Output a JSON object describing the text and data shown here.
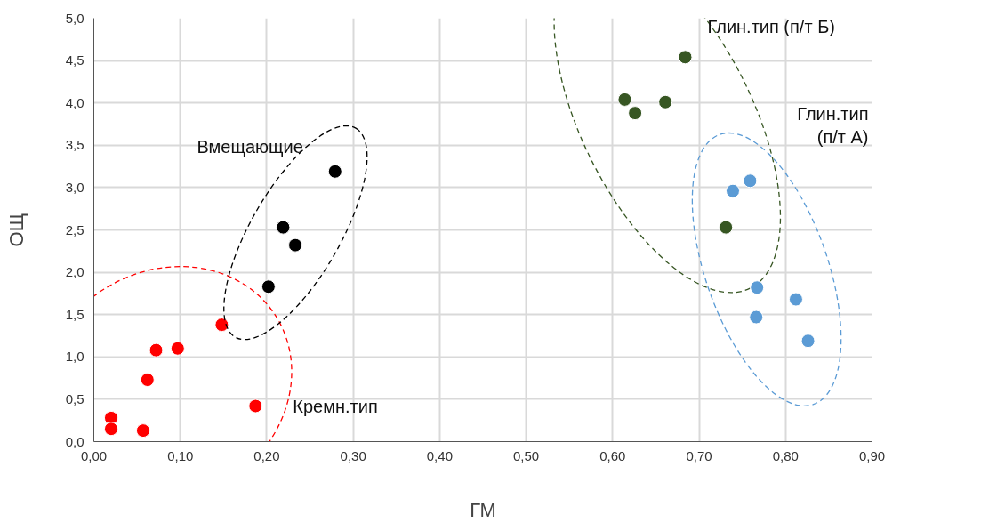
{
  "chart_data": {
    "type": "scatter",
    "xlabel": "ГМ",
    "ylabel": "ОЩ",
    "xlim": [
      0,
      0.9
    ],
    "ylim": [
      0,
      5
    ],
    "xticks": [
      {
        "value": 0,
        "label": "0,00"
      },
      {
        "value": 0.1,
        "label": "0,10"
      },
      {
        "value": 0.2,
        "label": "0,20"
      },
      {
        "value": 0.3,
        "label": "0,30"
      },
      {
        "value": 0.4,
        "label": "0,40"
      },
      {
        "value": 0.5,
        "label": "0,50"
      },
      {
        "value": 0.6,
        "label": "0,60"
      },
      {
        "value": 0.7,
        "label": "0,70"
      },
      {
        "value": 0.8,
        "label": "0,80"
      },
      {
        "value": 0.9,
        "label": "0,90"
      }
    ],
    "yticks": [
      {
        "value": 0,
        "label": "0,0"
      },
      {
        "value": 0.5,
        "label": "0,5"
      },
      {
        "value": 1,
        "label": "1,0"
      },
      {
        "value": 1.5,
        "label": "1,5"
      },
      {
        "value": 2,
        "label": "2,0"
      },
      {
        "value": 2.5,
        "label": "2,5"
      },
      {
        "value": 3,
        "label": "3,0"
      },
      {
        "value": 3.5,
        "label": "3,5"
      },
      {
        "value": 4,
        "label": "4,0"
      },
      {
        "value": 4.5,
        "label": "4,5"
      },
      {
        "value": 5,
        "label": "5,0"
      }
    ],
    "grid": true,
    "marker": "circle",
    "series": [
      {
        "name": "Кремн.тип",
        "color": "#ff0000",
        "x": [
          0.02,
          0.02,
          0.057,
          0.062,
          0.072,
          0.097,
          0.148,
          0.187
        ],
        "values": [
          0.28,
          0.15,
          0.13,
          0.73,
          1.08,
          1.1,
          1.38,
          0.42
        ]
      },
      {
        "name": "Вмещающие",
        "color": "#000000",
        "x": [
          0.202,
          0.219,
          0.233,
          0.279
        ],
        "values": [
          1.83,
          2.53,
          2.32,
          3.19
        ]
      },
      {
        "name": "Глин.тип (п/т Б)",
        "color": "#375623",
        "x": [
          0.614,
          0.626,
          0.661,
          0.684,
          0.731
        ],
        "values": [
          4.04,
          3.88,
          4.01,
          4.54,
          2.53
        ]
      },
      {
        "name": "Глин.тип (п/т А)",
        "color": "#5b9bd5",
        "x": [
          0.739,
          0.759,
          0.767,
          0.766,
          0.812,
          0.826
        ],
        "values": [
          2.96,
          3.08,
          1.82,
          1.47,
          1.68,
          1.19
        ]
      }
    ]
  }
}
